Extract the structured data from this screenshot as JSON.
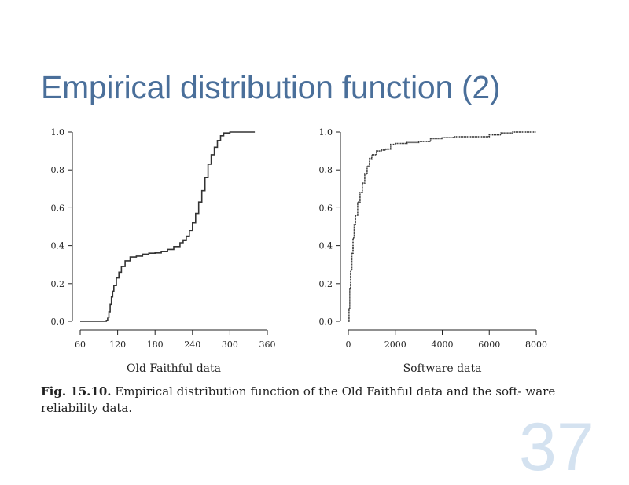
{
  "slide": {
    "title": "Empirical distribution function (2)",
    "number": "37",
    "title_color": "#4a6f9a"
  },
  "caption": {
    "label": "Fig. 15.10.",
    "text": "Empirical distribution function of the Old Faithful data and the soft- ware reliability data."
  },
  "chart_data": [
    {
      "type": "line",
      "step": true,
      "xlabel": "Old Faithful data",
      "ylabel": "",
      "xlim": [
        60,
        360
      ],
      "ylim": [
        0,
        1
      ],
      "x_ticks": [
        "60",
        "120",
        "180",
        "240",
        "300",
        "360"
      ],
      "y_ticks": [
        "0.0",
        "0.2",
        "0.4",
        "0.6",
        "0.8",
        "1.0"
      ],
      "grid": false,
      "series": [
        {
          "x": [
            60,
            96,
            102,
            104,
            106,
            108,
            110,
            112,
            114,
            118,
            122,
            126,
            132,
            140,
            150,
            160,
            170,
            180,
            190,
            200,
            210,
            220,
            225,
            230,
            235,
            240,
            245,
            250,
            255,
            260,
            265,
            270,
            275,
            280,
            285,
            290,
            300,
            340
          ],
          "y": [
            0,
            0,
            0.005,
            0.02,
            0.05,
            0.09,
            0.13,
            0.16,
            0.19,
            0.23,
            0.26,
            0.29,
            0.32,
            0.34,
            0.345,
            0.355,
            0.36,
            0.362,
            0.37,
            0.38,
            0.395,
            0.415,
            0.43,
            0.45,
            0.48,
            0.52,
            0.57,
            0.63,
            0.69,
            0.76,
            0.83,
            0.88,
            0.92,
            0.955,
            0.98,
            0.995,
            1.0,
            1.0
          ]
        }
      ]
    },
    {
      "type": "line",
      "step": true,
      "xlabel": "Software data",
      "ylabel": "",
      "xlim": [
        0,
        8000
      ],
      "ylim": [
        0,
        1
      ],
      "x_ticks": [
        "0",
        "2000",
        "4000",
        "6000",
        "8000"
      ],
      "y_ticks": [
        "0.0",
        "0.2",
        "0.4",
        "0.6",
        "0.8",
        "1.0"
      ],
      "grid": false,
      "series": [
        {
          "x": [
            0,
            30,
            60,
            100,
            150,
            200,
            250,
            300,
            400,
            500,
            600,
            700,
            800,
            900,
            1000,
            1200,
            1400,
            1600,
            1800,
            2000,
            2500,
            3000,
            3500,
            4000,
            4500,
            5000,
            5500,
            6000,
            6500,
            7000,
            8000
          ],
          "y": [
            0.0,
            0.07,
            0.17,
            0.27,
            0.36,
            0.44,
            0.51,
            0.56,
            0.63,
            0.68,
            0.73,
            0.78,
            0.82,
            0.86,
            0.88,
            0.9,
            0.905,
            0.91,
            0.935,
            0.94,
            0.945,
            0.95,
            0.965,
            0.97,
            0.975,
            0.975,
            0.975,
            0.985,
            0.995,
            1.0,
            1.0
          ]
        }
      ]
    }
  ]
}
